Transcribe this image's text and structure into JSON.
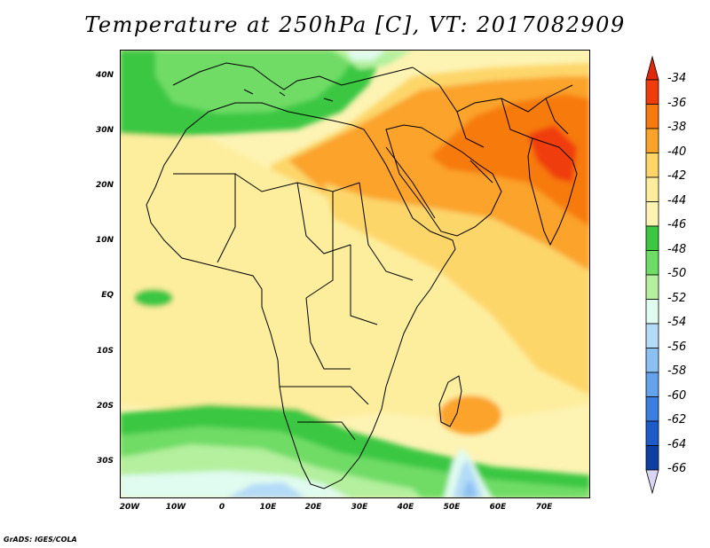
{
  "title": "Temperature at 250hPa [C], VT: 2017082909",
  "credit": "GrADS: IGES/COLA",
  "map": {
    "region": "Africa and Middle East",
    "lat_ticks": [
      "40N",
      "30N",
      "20N",
      "10N",
      "EQ",
      "10S",
      "20S",
      "30S"
    ],
    "lon_ticks": [
      "20W",
      "10W",
      "0",
      "10E",
      "20E",
      "30E",
      "40E",
      "50E",
      "60E",
      "70E"
    ]
  },
  "colorbar": {
    "levels": [
      {
        "label": "-34",
        "color": "#f03c0a"
      },
      {
        "label": "-36",
        "color": "#f77a0e"
      },
      {
        "label": "-38",
        "color": "#fba329"
      },
      {
        "label": "-40",
        "color": "#fdd66a"
      },
      {
        "label": "-42",
        "color": "#fdee9e"
      },
      {
        "label": "-44",
        "color": "#fdf3b3"
      },
      {
        "label": "-46",
        "color": "#3bc742"
      },
      {
        "label": "-48",
        "color": "#6fdc66"
      },
      {
        "label": "-50",
        "color": "#b4f09e"
      },
      {
        "label": "-52",
        "color": "#e0fbf0"
      },
      {
        "label": "-54",
        "color": "#b4dcf8"
      },
      {
        "label": "-56",
        "color": "#8cc0f3"
      },
      {
        "label": "-58",
        "color": "#64a2ec"
      },
      {
        "label": "-60",
        "color": "#3a7fe0"
      },
      {
        "label": "-62",
        "color": "#1d5cc8"
      },
      {
        "label": "-64",
        "color": "#0f3ea0"
      },
      {
        "label": "-66",
        "color": "#08186a"
      }
    ],
    "top_arrow_color": "#e0280a",
    "bottom_arrow_color": "#d8d6f2"
  }
}
